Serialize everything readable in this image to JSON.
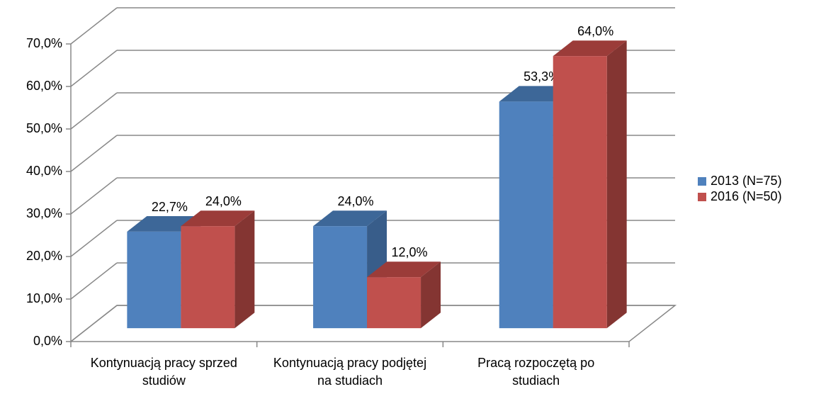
{
  "chart_data": {
    "type": "bar3d",
    "categories": [
      "Kontynuacją pracy sprzed studiów",
      "Kontynuacją pracy podjętej na studiach",
      "Pracą rozpoczętą po studiach"
    ],
    "series": [
      {
        "name": "2013 (N=75)",
        "color": "#4f81bd",
        "side_color": "#385d8a",
        "top_color": "#3d6798",
        "values": [
          22.7,
          24.0,
          53.3
        ],
        "value_labels": [
          "22,7%",
          "24,0%",
          "53,3%"
        ]
      },
      {
        "name": "2016 (N=50)",
        "color": "#c0504d",
        "side_color": "#843532",
        "top_color": "#9b3c39",
        "values": [
          24.0,
          12.0,
          64.0
        ],
        "value_labels": [
          "24,0%",
          "12,0%",
          "64,0%"
        ]
      }
    ],
    "ylim": [
      0,
      70
    ],
    "yticks": [
      {
        "value": 0,
        "label": "0,0%"
      },
      {
        "value": 10,
        "label": "10,0%"
      },
      {
        "value": 20,
        "label": "20,0%"
      },
      {
        "value": 30,
        "label": "30,0%"
      },
      {
        "value": 40,
        "label": "40,0%"
      },
      {
        "value": 50,
        "label": "50,0%"
      },
      {
        "value": 60,
        "label": "60,0%"
      },
      {
        "value": 70,
        "label": "70,0%"
      }
    ],
    "grid": true,
    "legend": "right"
  }
}
